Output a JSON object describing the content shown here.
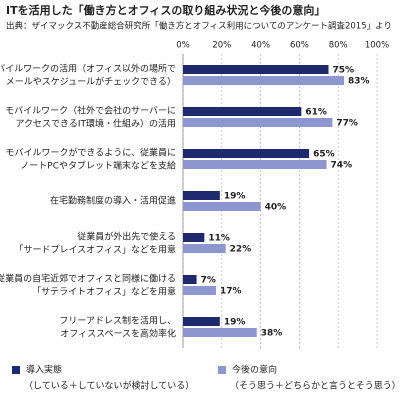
{
  "chart_data": {
    "type": "hbar",
    "title": "ITを活用した「働き方とオフィスの取り組み状況と今後の意向」",
    "subtitle": "出典：ザイマックス不動産総合研究所「働き方とオフィス利用についてのアンケート調査2015」より",
    "categories": [
      "モバイルワークの活用（オフィス以外の場所で\nメールやスケジュールがチェックできる）",
      "モバイルワーク（社外で会社のサーバーに\nアクセスできるIT環境・仕組み）の活用",
      "モバイルワークができるように、従業員に\nノートPCやタブレット端末などを支給",
      "在宅勤務制度の導入・活用促進",
      "従業員が外出先で使える\n「サードプレイスオフィス」などを用意",
      "従業員の自宅近郊でオフィスと同様に働ける\n「サテライトオフィス」などを用意",
      "フリーアドレス制を活用し、\nオフィススペースを高効率化"
    ],
    "series": [
      {
        "name": "導入実態",
        "note": "（している＋していないが検討している）",
        "color": "#1f2a6e",
        "values": [
          75,
          61,
          65,
          19,
          11,
          7,
          19
        ],
        "value_labels": [
          "75%",
          "61%",
          "65%",
          "19%",
          "11%",
          "7%",
          "19%"
        ]
      },
      {
        "name": "今後の意向",
        "note": "（そう思う＋どちらかと言うとそう思う）",
        "color": "#8d96cf",
        "values": [
          83,
          77,
          74,
          40,
          22,
          17,
          38
        ],
        "value_labels": [
          "83%",
          "77%",
          "74%",
          "40%",
          "22%",
          "17%",
          "38%"
        ]
      }
    ],
    "xlim": [
      0,
      100
    ],
    "xticks": [
      {
        "value": 0,
        "label": "0%"
      },
      {
        "value": 20,
        "label": "20%"
      },
      {
        "value": 40,
        "label": "40%"
      },
      {
        "value": 60,
        "label": "60%"
      },
      {
        "value": 80,
        "label": "80%"
      },
      {
        "value": 100,
        "label": "100%"
      }
    ],
    "grid": true
  }
}
